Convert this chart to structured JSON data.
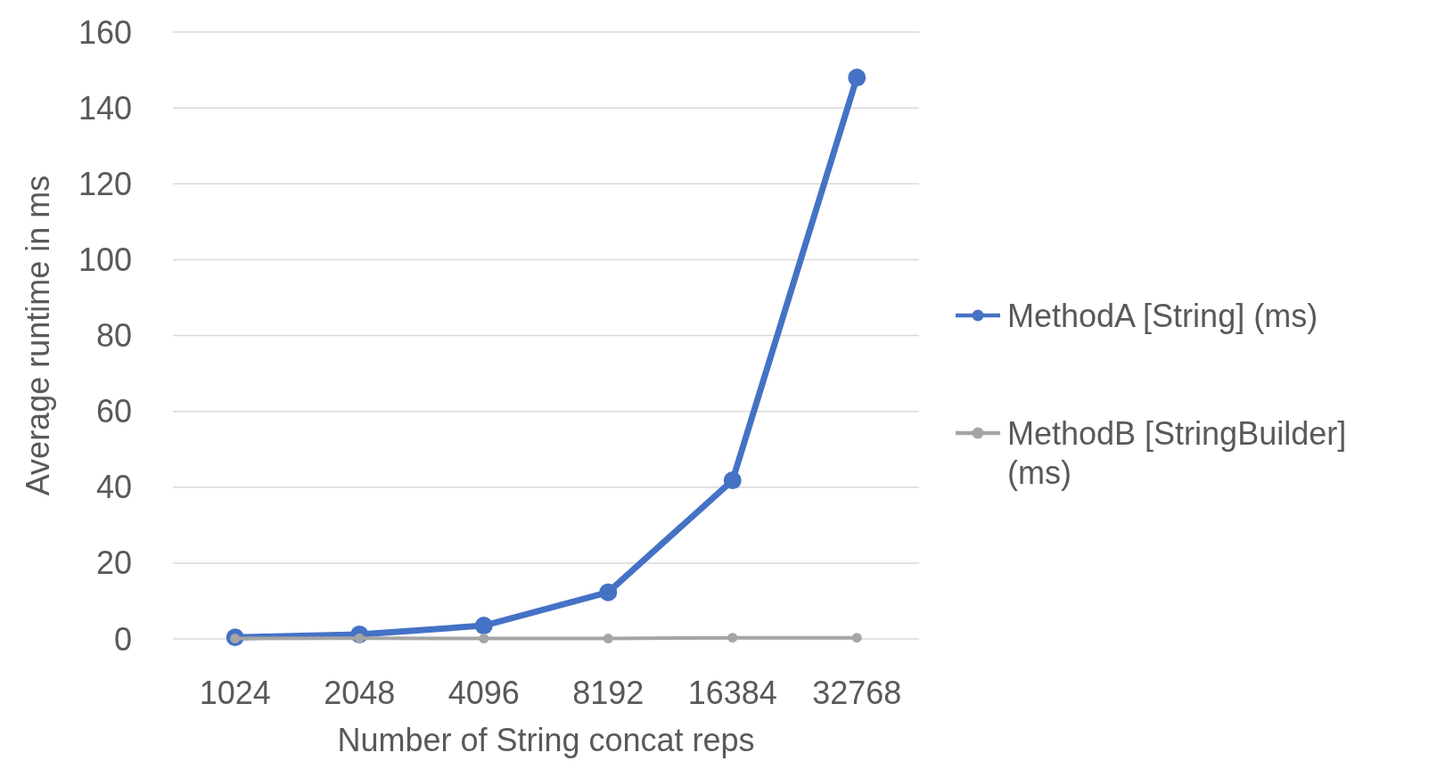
{
  "chart_data": {
    "type": "line",
    "xlabel": "Number of String concat reps",
    "ylabel": "Average runtime in ms",
    "categories": [
      "1024",
      "2048",
      "4096",
      "8192",
      "16384",
      "32768"
    ],
    "series": [
      {
        "name": "MethodA [String] (ms)",
        "color": "#4472c4",
        "values": [
          0.4,
          1.2,
          3.5,
          12.3,
          41.8,
          148
        ]
      },
      {
        "name": "MethodB [StringBuilder] (ms)",
        "color": "#a5a5a5",
        "values": [
          0.1,
          0.2,
          0.1,
          0.1,
          0.3,
          0.3
        ]
      }
    ],
    "ylim": [
      0,
      160
    ],
    "yticks": [
      0,
      20,
      40,
      60,
      80,
      100,
      120,
      140,
      160
    ],
    "grid": "y",
    "legend": "right",
    "marker": "circle",
    "line_style": "solid"
  }
}
